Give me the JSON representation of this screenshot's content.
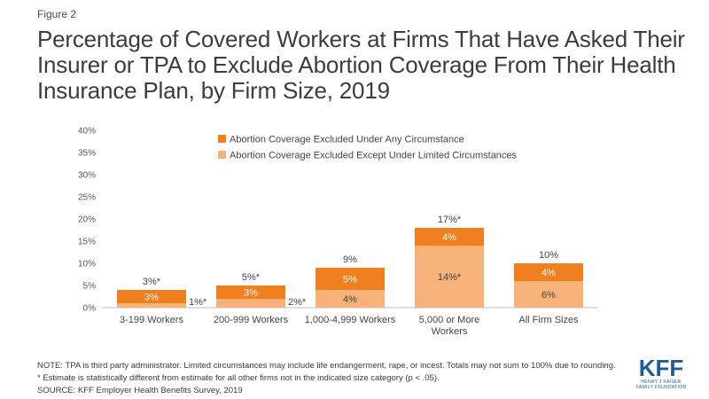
{
  "figure_label": "Figure 2",
  "title": "Percentage of Covered Workers at Firms That Have Asked Their Insurer or TPA to Exclude Abortion Coverage From Their Health Insurance Plan, by Firm Size, 2019",
  "notes": {
    "note": "NOTE: TPA is third party administrator. Limited circumstances may include life endangerment, rape, or incest. Totals may not sum to 100% due to rounding.",
    "estimate": "* Estimate is statistically different from estimate for all other firms not in the indicated size category (p < .05).",
    "source": "SOURCE: KFF Employer Health Benefits Survey, 2019"
  },
  "logo": {
    "text": "KFF",
    "line1": "HENRY J KAISER",
    "line2": "FAMILY FOUNDATION"
  },
  "colors": {
    "dark": "#f07f1d",
    "light": "#f7b27a"
  },
  "chart_data": {
    "type": "bar",
    "stacked": true,
    "categories": [
      "3-199 Workers",
      "200-999 Workers",
      "1,000-4,999 Workers",
      "5,000 or More Workers",
      "All Firm Sizes"
    ],
    "category_label_lines": [
      [
        "3-199 Workers"
      ],
      [
        "200-999 Workers"
      ],
      [
        "1,000-4,999 Workers"
      ],
      [
        "5,000 or More",
        "Workers"
      ],
      [
        "All Firm Sizes"
      ]
    ],
    "series": [
      {
        "name": "Abortion Coverage Excluded Except Under Limited Circumstances",
        "values": [
          1,
          2,
          4,
          14,
          6
        ],
        "labels": [
          "1%*",
          "2%*",
          "4%",
          "14%*",
          "6%"
        ]
      },
      {
        "name": "Abortion Coverage Excluded Under Any Circumstance",
        "values": [
          3,
          3,
          5,
          4,
          4
        ],
        "labels": [
          "3%",
          "3%",
          "5%",
          "4%",
          "4%"
        ]
      }
    ],
    "totals": [
      "3%*",
      "5%*",
      "9%",
      "17%*",
      "10%"
    ],
    "legend_order": [
      "Abortion Coverage Excluded Under Any Circumstance",
      "Abortion Coverage Excluded Except Under Limited Circumstances"
    ],
    "legend_position": "top-center",
    "y_ticks": [
      "0%",
      "5%",
      "10%",
      "15%",
      "20%",
      "25%",
      "30%",
      "35%",
      "40%"
    ],
    "ylim": [
      0,
      40
    ],
    "xlabel": "",
    "ylabel": "",
    "grid": false
  }
}
